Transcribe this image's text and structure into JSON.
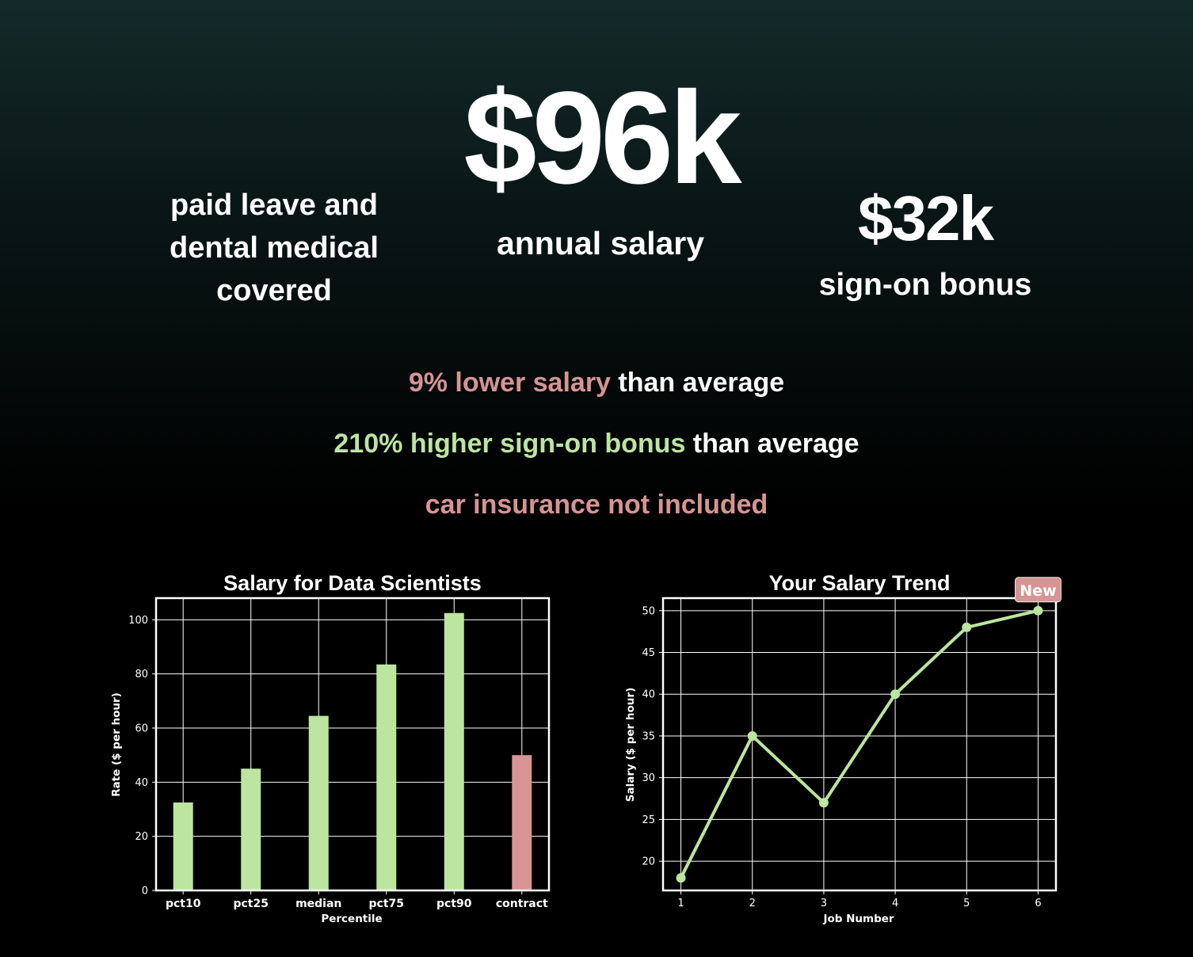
{
  "header": {
    "salary_value": "$96k",
    "salary_label": "annual salary",
    "benefits_lines": [
      "paid leave and",
      "dental medical",
      "covered"
    ],
    "bonus_value": "$32k",
    "bonus_label": "sign-on bonus"
  },
  "comparisons": [
    {
      "highlight": "9% lower salary",
      "rest": " than average",
      "tone": "negative"
    },
    {
      "highlight": "210% higher sign-on bonus",
      "rest": " than average",
      "tone": "positive"
    },
    {
      "highlight": "car insurance not included",
      "rest": "",
      "tone": "negative"
    }
  ],
  "colors": {
    "positive": "#bce5a0",
    "negative": "#d79494",
    "background_top": "#142a2a",
    "background_bottom": "#000000"
  },
  "chart_data": [
    {
      "type": "bar",
      "title": "Salary for Data Scientists",
      "xlabel": "Percentile",
      "ylabel": "Rate ($ per hour)",
      "categories": [
        "pct10",
        "pct25",
        "median",
        "pct75",
        "pct90",
        "contract"
      ],
      "values": [
        32.5,
        45,
        64.5,
        83.5,
        102.5,
        50
      ],
      "bar_colors": [
        "#bce5a0",
        "#bce5a0",
        "#bce5a0",
        "#bce5a0",
        "#bce5a0",
        "#d79494"
      ],
      "ylim": [
        0,
        108
      ],
      "yticks": [
        0,
        20,
        40,
        60,
        80,
        100
      ],
      "grid": true
    },
    {
      "type": "line",
      "title": "Your Salary Trend",
      "xlabel": "Job Number",
      "ylabel": "Salary ($ per hour)",
      "x": [
        1,
        2,
        3,
        4,
        5,
        6
      ],
      "y": [
        18,
        35,
        27,
        40,
        48,
        50
      ],
      "xlim": [
        0.75,
        6.25
      ],
      "ylim": [
        16.5,
        51.5
      ],
      "xticks": [
        1,
        2,
        3,
        4,
        5,
        6
      ],
      "yticks": [
        20,
        25,
        30,
        35,
        40,
        45,
        50
      ],
      "grid": true,
      "color": "#bce5a0",
      "annotation": {
        "text": "New",
        "x": 6,
        "y": 50,
        "color": "#d79494"
      }
    }
  ]
}
